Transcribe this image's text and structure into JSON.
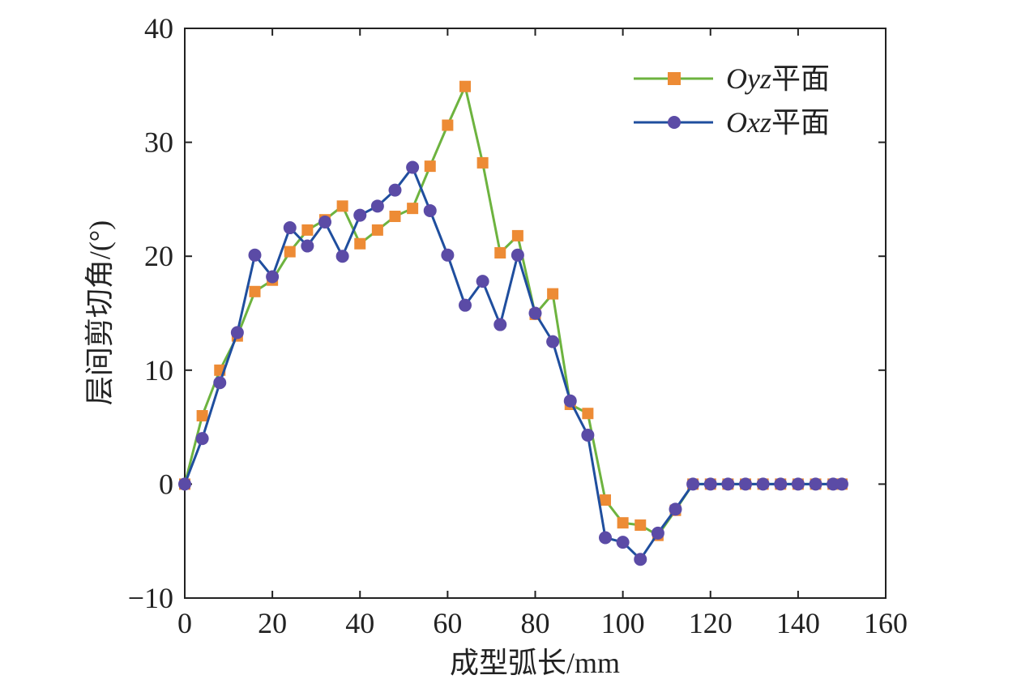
{
  "chart_data": {
    "type": "line",
    "xlabel": "成型弧长/mm",
    "ylabel": "层间剪切角/(°)",
    "xlim": [
      0,
      160
    ],
    "ylim": [
      -10,
      40
    ],
    "xticks": [
      "0",
      "20",
      "40",
      "60",
      "80",
      "100",
      "120",
      "140",
      "160"
    ],
    "yticks": [
      "−10",
      "0",
      "10",
      "20",
      "30",
      "40"
    ],
    "grid": false,
    "legend_position": "top-right",
    "x": [
      0,
      4,
      8,
      12,
      16,
      20,
      24,
      28,
      32,
      36,
      40,
      44,
      48,
      52,
      56,
      60,
      64,
      68,
      72,
      76,
      80,
      84,
      88,
      92,
      96,
      100,
      104,
      108,
      112,
      116,
      120,
      124,
      128,
      132,
      136,
      140,
      144,
      148,
      150
    ],
    "series": [
      {
        "name_prefix": "Oyz",
        "name_suffix": "平面",
        "line_color": "#6DB33F",
        "marker": "square",
        "marker_color": "#ED8B35",
        "values": [
          0,
          6.0,
          10.0,
          13.0,
          16.9,
          17.9,
          20.4,
          22.3,
          23.2,
          24.4,
          21.1,
          22.3,
          23.5,
          24.2,
          27.9,
          31.5,
          34.9,
          28.2,
          20.3,
          21.8,
          14.9,
          16.7,
          7.0,
          6.2,
          -1.4,
          -3.4,
          -3.6,
          -4.5,
          -2.3,
          0,
          0,
          0,
          0,
          0,
          0,
          0,
          0,
          0,
          0
        ]
      },
      {
        "name_prefix": "Oxz",
        "name_suffix": "平面",
        "line_color": "#1F4E9E",
        "marker": "circle",
        "marker_color": "#5B4BA6",
        "values": [
          0,
          4.0,
          8.9,
          13.3,
          20.1,
          18.2,
          22.5,
          20.9,
          23.0,
          20.0,
          23.6,
          24.4,
          25.8,
          27.8,
          24.0,
          20.1,
          15.7,
          17.8,
          14.0,
          20.1,
          15.0,
          12.5,
          7.3,
          4.3,
          -4.7,
          -5.1,
          -6.6,
          -4.3,
          -2.2,
          0,
          0,
          0,
          0,
          0,
          0,
          0,
          0,
          0,
          0
        ]
      }
    ]
  }
}
